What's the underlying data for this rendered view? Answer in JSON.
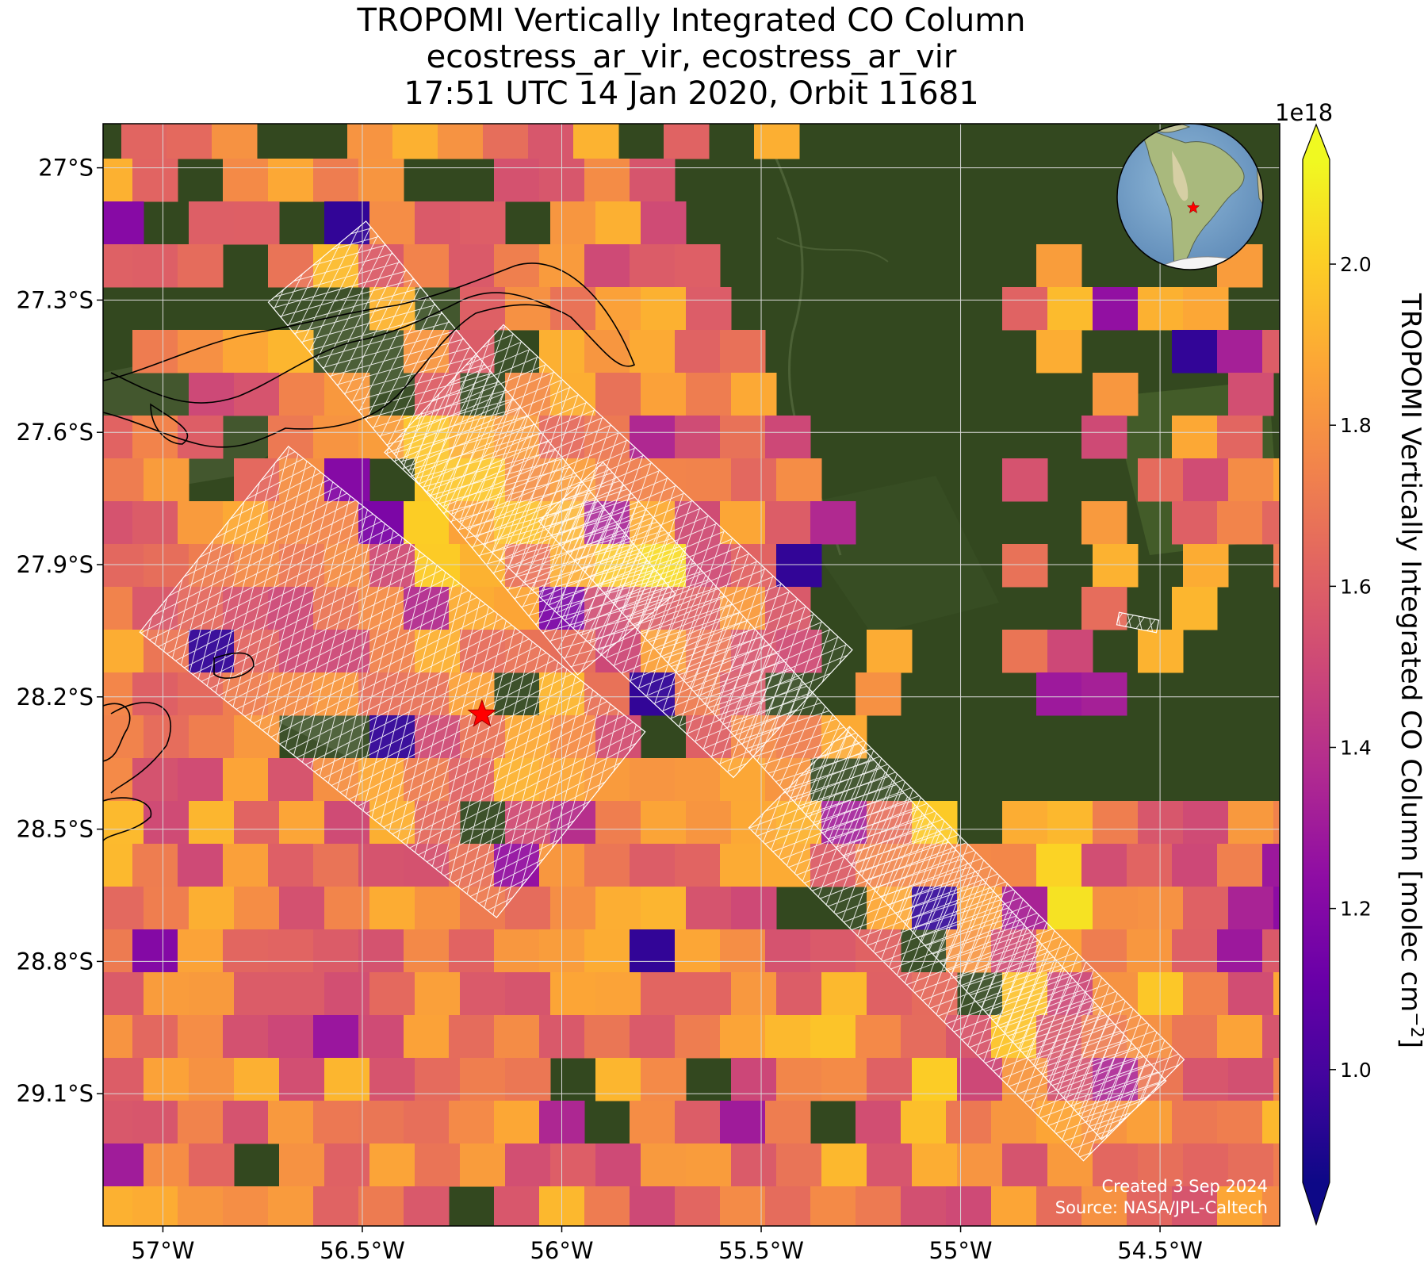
{
  "title": {
    "line1": "TROPOMI Vertically Integrated CO Column",
    "line2": "ecostress_ar_vir, ecostress_ar_vir",
    "line3": "17:51 UTC 14 Jan 2020, Orbit 11681"
  },
  "map": {
    "extent": {
      "lon": [
        -57.15,
        -54.2
      ],
      "lat": [
        -29.4,
        -26.9
      ]
    },
    "lat_ticks": [
      {
        "value": -27.0,
        "label": "27°S"
      },
      {
        "value": -27.3,
        "label": "27.3°S"
      },
      {
        "value": -27.6,
        "label": "27.6°S"
      },
      {
        "value": -27.9,
        "label": "27.9°S"
      },
      {
        "value": -28.2,
        "label": "28.2°S"
      },
      {
        "value": -28.5,
        "label": "28.5°S"
      },
      {
        "value": -28.8,
        "label": "28.8°S"
      },
      {
        "value": -29.1,
        "label": "29.1°S"
      }
    ],
    "lon_ticks": [
      {
        "value": -57.0,
        "label": "57°W"
      },
      {
        "value": -56.5,
        "label": "56.5°W"
      },
      {
        "value": -56.0,
        "label": "56°W"
      },
      {
        "value": -55.5,
        "label": "55.5°W"
      },
      {
        "value": -55.0,
        "label": "55°W"
      },
      {
        "value": -54.5,
        "label": "54.5°W"
      }
    ],
    "grid": true,
    "basemap": "satellite imagery (forest / farmland)",
    "site_marker": {
      "lon": -56.2,
      "lat": -28.24,
      "symbol": "red star"
    },
    "credits": {
      "line1": "Created 3 Sep 2024",
      "line2": "Source: NASA/JPL-Caltech"
    },
    "inset": {
      "description": "globe centered on South America",
      "marker": "red star"
    }
  },
  "colorbar": {
    "label": "TROPOMI Vertically Integrated CO Column [molec cm",
    "label_exponent": "−2",
    "label_close": "]",
    "multiplier": "1e18",
    "colormap": "plasma",
    "vmin": 0.86,
    "vmax": 2.13,
    "extend": "both",
    "ticks": [
      {
        "value": 1.0,
        "label": "1.0"
      },
      {
        "value": 1.2,
        "label": "1.2"
      },
      {
        "value": 1.4,
        "label": "1.4"
      },
      {
        "value": 1.6,
        "label": "1.6"
      },
      {
        "value": 1.8,
        "label": "1.8"
      },
      {
        "value": 2.0,
        "label": "2.0"
      }
    ]
  },
  "colors": {
    "plasma_stops": [
      "#0d0887",
      "#41049d",
      "#6a00a8",
      "#8f0da4",
      "#b12a90",
      "#cc4778",
      "#e16462",
      "#f2844b",
      "#fca636",
      "#fcce25",
      "#f0f921"
    ],
    "marker": "#ff0000"
  }
}
